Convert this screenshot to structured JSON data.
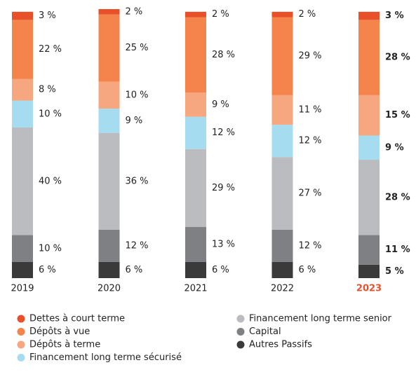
{
  "chart_data": {
    "type": "stacked_bar",
    "categories": [
      "2019",
      "2020",
      "2021",
      "2022",
      "2023"
    ],
    "series": [
      {
        "name": "Dettes à court terme",
        "color": "#e8502a",
        "values": [
          3,
          2,
          2,
          2,
          3
        ],
        "value_labels": [
          "3 %",
          "2 %",
          "2 %",
          "2 %",
          "3 %"
        ]
      },
      {
        "name": "Dépôts à vue",
        "color": "#f4844c",
        "values": [
          22,
          25,
          28,
          29,
          28
        ],
        "value_labels": [
          "22 %",
          "25 %",
          "28 %",
          "29 %",
          "28 %"
        ]
      },
      {
        "name": "Dépôts à terme",
        "color": "#f7a77f",
        "values": [
          8,
          10,
          9,
          11,
          15
        ],
        "value_labels": [
          "8 %",
          "10 %",
          "9 %",
          "11 %",
          "15 %"
        ]
      },
      {
        "name": "Financement long terme sécurisé",
        "color": "#a6dcf0",
        "values": [
          10,
          9,
          12,
          12,
          9
        ],
        "value_labels": [
          "10 %",
          "9 %",
          "12 %",
          "12 %",
          "9 %"
        ]
      },
      {
        "name": "Financement long terme senior",
        "color": "#bbbcc0",
        "values": [
          40,
          36,
          29,
          27,
          28
        ],
        "value_labels": [
          "40 %",
          "36 %",
          "29 %",
          "27 %",
          "28 %"
        ]
      },
      {
        "name": "Capital",
        "color": "#7f8083",
        "values": [
          10,
          12,
          13,
          12,
          11
        ],
        "value_labels": [
          "10 %",
          "12 %",
          "13 %",
          "12 %",
          "11 %"
        ]
      },
      {
        "name": "Autres Passifs",
        "color": "#3a3a3a",
        "values": [
          6,
          6,
          6,
          6,
          5
        ],
        "value_labels": [
          "6 %",
          "6 %",
          "6 %",
          "6 %",
          "5 %"
        ]
      }
    ]
  }
}
